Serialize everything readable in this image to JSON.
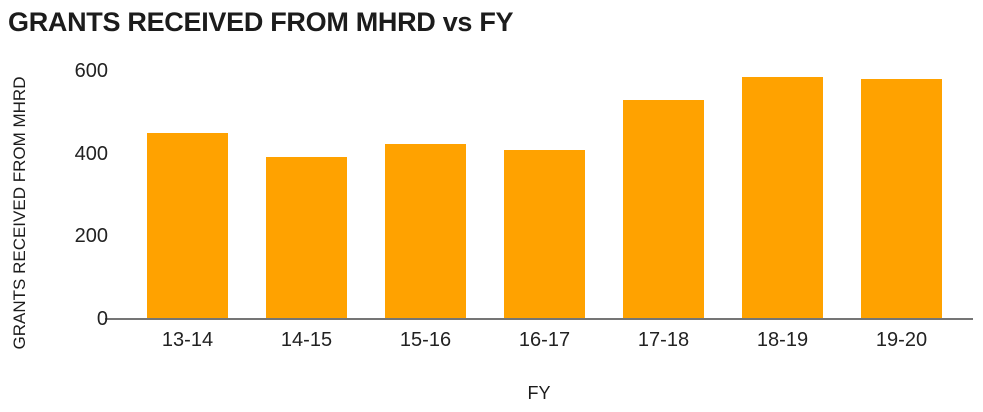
{
  "title": "GRANTS RECEIVED FROM MHRD vs FY",
  "colors": {
    "bar": "#FFA200",
    "axis_line": "#757575",
    "text": "#1c1c1c",
    "tick_text": "#222222",
    "background": "#ffffff"
  },
  "chart_data": {
    "type": "bar",
    "title": "GRANTS RECEIVED FROM MHRD vs FY",
    "xlabel": "FY",
    "ylabel": "GRANTS RECEIVED FROM MHRD",
    "categories": [
      "13-14",
      "14-15",
      "15-16",
      "16-17",
      "17-18",
      "18-19",
      "19-20"
    ],
    "values": [
      450,
      393,
      423,
      409,
      530,
      585,
      580
    ],
    "yticks": [
      0,
      200,
      400,
      600
    ],
    "ylim": [
      0,
      600
    ],
    "grid": false,
    "legend": null,
    "bar_color": "#FFA200"
  }
}
